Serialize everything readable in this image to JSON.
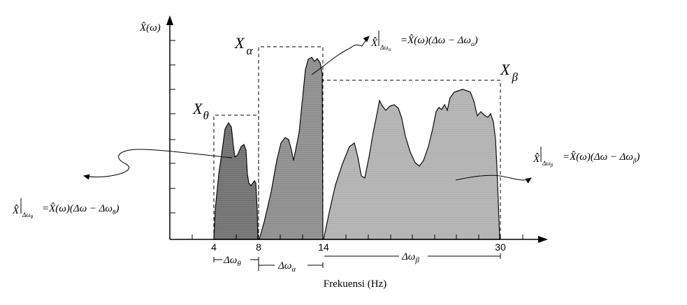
{
  "y_axis": {
    "label": "X̂(ω)"
  },
  "x_axis": {
    "label": "Frekuensi (Hz)",
    "ticks": [
      "4",
      "8",
      "14",
      "30"
    ]
  },
  "bands": {
    "theta": {
      "label": "X",
      "sub": "θ",
      "width_label": "Δω",
      "width_sub": "θ"
    },
    "alpha": {
      "label": "X",
      "sub": "α",
      "width_label": "Δω",
      "width_sub": "α"
    },
    "beta": {
      "label": "X",
      "sub": "β",
      "width_label": "Δω",
      "width_sub": "β"
    }
  },
  "equations": {
    "theta": {
      "lhs": "X̂̂",
      "sub": "Δω",
      "subsub": "θ",
      "rhs": "=X̂(ω)(Δω − Δω",
      "rhs_sub": "θ",
      "close": ")"
    },
    "alpha": {
      "lhs": "X̂̂",
      "sub": "Δω",
      "subsub": "α",
      "rhs": "=X̂(ω)(Δω − Δω",
      "rhs_sub": "α",
      "close": ")"
    },
    "beta": {
      "lhs": "X̂̂",
      "sub": "Δω",
      "subsub": "β",
      "rhs": "=X̂(ω)(Δω − Δω",
      "rhs_sub": "β",
      "close": ")"
    }
  },
  "colors": {
    "theta_fill": "#6e6e6e",
    "alpha_fill": "#8c8c8c",
    "beta_fill": "#b0b0b0",
    "stroke": "#000000"
  }
}
